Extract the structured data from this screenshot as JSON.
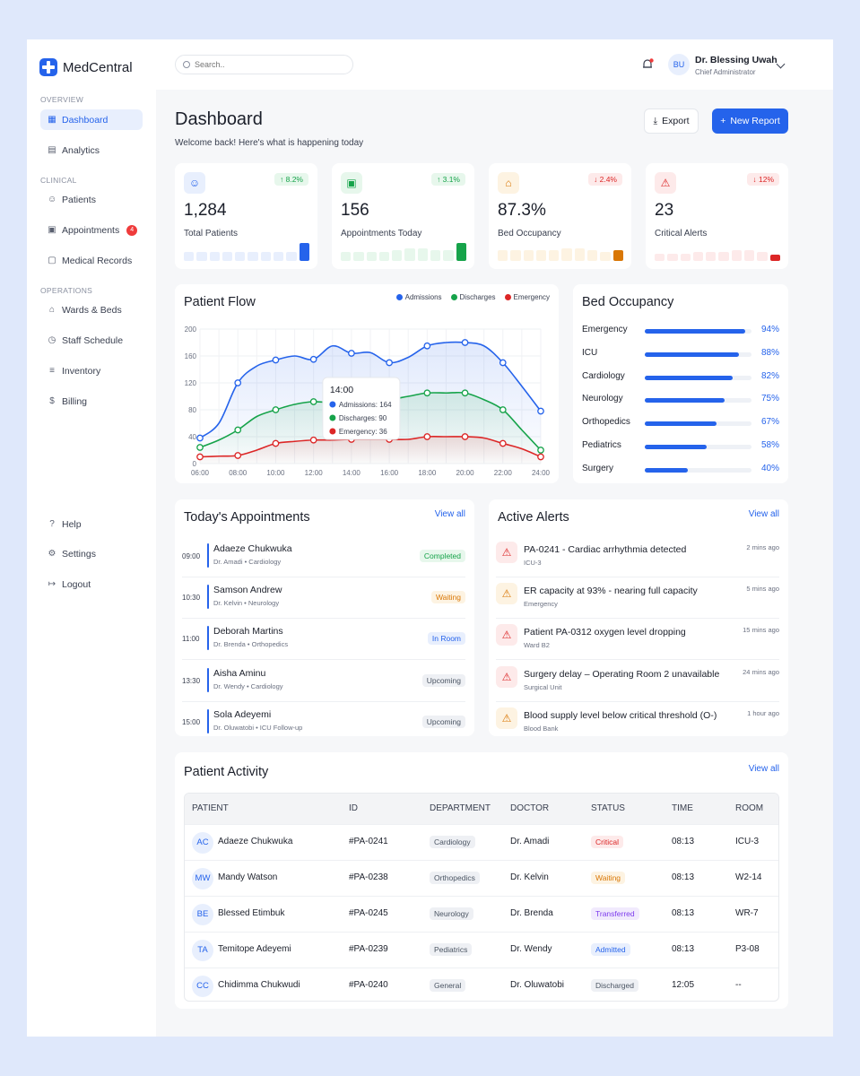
{
  "brand": {
    "name": "MedCentral"
  },
  "nav": {
    "sections": [
      {
        "label": "OVERVIEW",
        "items": [
          {
            "label": "Dashboard",
            "icon": "grid-icon",
            "active": true
          },
          {
            "label": "Analytics",
            "icon": "chart-icon"
          }
        ]
      },
      {
        "label": "CLINICAL",
        "items": [
          {
            "label": "Patients",
            "icon": "users-icon"
          },
          {
            "label": "Appointments",
            "icon": "calendar-icon",
            "badge": "4"
          },
          {
            "label": "Medical Records",
            "icon": "document-icon"
          }
        ]
      },
      {
        "label": "OPERATIONS",
        "items": [
          {
            "label": "Wards & Beds",
            "icon": "home-icon"
          },
          {
            "label": "Staff Schedule",
            "icon": "clock-icon"
          },
          {
            "label": "Inventory",
            "icon": "list-icon"
          },
          {
            "label": "Billing",
            "icon": "dollar-icon"
          }
        ]
      }
    ],
    "footer": [
      {
        "label": "Help",
        "icon": "help-icon"
      },
      {
        "label": "Settings",
        "icon": "gear-icon"
      },
      {
        "label": "Logout",
        "icon": "logout-icon"
      }
    ]
  },
  "topbar": {
    "search_placeholder": "Search..",
    "user": {
      "initials": "BU",
      "name": "Dr. Blessing Uwah",
      "role": "Chief Administrator"
    }
  },
  "header": {
    "title": "Dashboard",
    "subtitle": "Welcome back! Here's what is happening today",
    "export_label": "Export",
    "new_report_label": "New Report"
  },
  "stats": [
    {
      "value": "1,284",
      "label": "Total Patients",
      "change": "↑ 8.2%",
      "trend": "up",
      "accent": "#2563eb",
      "tint": "#e8effd",
      "icon": "users-icon",
      "bars": [
        0.5,
        0.5,
        0.5,
        0.5,
        0.5,
        0.5,
        0.5,
        0.5,
        0.5,
        1.0
      ]
    },
    {
      "value": "156",
      "label": "Appointments Today",
      "change": "↑ 3.1%",
      "trend": "up",
      "accent": "#16a34a",
      "tint": "#e7f7ec",
      "icon": "calendar-icon",
      "bars": [
        0.5,
        0.5,
        0.5,
        0.5,
        0.6,
        0.7,
        0.7,
        0.6,
        0.6,
        1.0
      ]
    },
    {
      "value": "87.3%",
      "label": "Bed Occupancy",
      "change": "↓ 2.4%",
      "trend": "down",
      "accent": "#d97706",
      "tint": "#fdf3e2",
      "icon": "home-icon",
      "bars": [
        0.6,
        0.6,
        0.6,
        0.6,
        0.6,
        0.7,
        0.7,
        0.6,
        0.5,
        0.6
      ]
    },
    {
      "value": "23",
      "label": "Critical Alerts",
      "change": "↓ 12%",
      "trend": "down",
      "accent": "#dc2626",
      "tint": "#fdeaea",
      "icon": "alert-icon",
      "bars": [
        0.4,
        0.4,
        0.4,
        0.5,
        0.5,
        0.5,
        0.6,
        0.6,
        0.5,
        0.35
      ]
    }
  ],
  "patient_flow": {
    "title": "Patient Flow",
    "legend": [
      {
        "name": "Admissions",
        "color": "#2563eb"
      },
      {
        "name": "Discharges",
        "color": "#16a34a"
      },
      {
        "name": "Emergency",
        "color": "#dc2626"
      }
    ],
    "tooltip": {
      "title": "14:00",
      "lines": [
        "Admissions: 164",
        "Discharges: 90",
        "Emergency: 36"
      ]
    }
  },
  "chart_data": {
    "type": "line",
    "x": [
      "06:00",
      "07:00",
      "08:00",
      "09:00",
      "10:00",
      "11:00",
      "12:00",
      "13:00",
      "14:00",
      "15:00",
      "16:00",
      "17:00",
      "18:00",
      "19:00",
      "20:00",
      "21:00",
      "22:00",
      "23:00",
      "24:00"
    ],
    "series": [
      {
        "name": "Admissions",
        "color": "#2563eb",
        "values": [
          38,
          60,
          120,
          145,
          154,
          160,
          155,
          175,
          164,
          165,
          150,
          158,
          175,
          180,
          180,
          175,
          150,
          115,
          78
        ]
      },
      {
        "name": "Discharges",
        "color": "#16a34a",
        "values": [
          24,
          35,
          50,
          70,
          80,
          88,
          92,
          90,
          90,
          92,
          95,
          100,
          105,
          105,
          105,
          95,
          80,
          50,
          20
        ]
      },
      {
        "name": "Emergency",
        "color": "#dc2626",
        "values": [
          10,
          11,
          12,
          20,
          30,
          33,
          35,
          35,
          36,
          36,
          36,
          36,
          40,
          40,
          40,
          38,
          30,
          22,
          10
        ]
      }
    ],
    "xticks": [
      "06:00",
      "08:00",
      "10:00",
      "12:00",
      "14:00",
      "16:00",
      "18:00",
      "20:00",
      "22:00",
      "24:00"
    ],
    "yticks": [
      "0",
      "40",
      "80",
      "120",
      "160",
      "200"
    ],
    "ylim": [
      0,
      200
    ],
    "grid": true,
    "legend_position": "top-right"
  },
  "bed_occupancy": {
    "title": "Bed Occupancy",
    "rows": [
      {
        "name": "Emergency",
        "pct": 94,
        "label": "94%"
      },
      {
        "name": "ICU",
        "pct": 88,
        "label": "88%"
      },
      {
        "name": "Cardiology",
        "pct": 82,
        "label": "82%"
      },
      {
        "name": "Neurology",
        "pct": 75,
        "label": "75%"
      },
      {
        "name": "Orthopedics",
        "pct": 67,
        "label": "67%"
      },
      {
        "name": "Pediatrics",
        "pct": 58,
        "label": "58%"
      },
      {
        "name": "Surgery",
        "pct": 40,
        "label": "40%"
      }
    ]
  },
  "appointments": {
    "title": "Today's Appointments",
    "view_all": "View all",
    "rows": [
      {
        "time": "09:00",
        "name": "Adaeze Chukwuka",
        "doctor": "Dr. Amadi • Cardiology",
        "status": "Completed",
        "color": "#16a34a",
        "tint": "#e7f7ec"
      },
      {
        "time": "10:30",
        "name": "Samson Andrew",
        "doctor": "Dr. Kelvin • Neurology",
        "status": "Waiting",
        "color": "#d97706",
        "tint": "#fdf3e2"
      },
      {
        "time": "11:00",
        "name": "Deborah Martins",
        "doctor": "Dr. Brenda • Orthopedics",
        "status": "In Room",
        "color": "#2563eb",
        "tint": "#e8effd"
      },
      {
        "time": "13:30",
        "name": "Aisha Aminu",
        "doctor": "Dr. Wendy • Cardiology",
        "status": "Upcoming",
        "color": "#4b5563",
        "tint": "#eef0f4"
      },
      {
        "time": "15:00",
        "name": "Sola Adeyemi",
        "doctor": "Dr. Oluwatobi • ICU Follow-up",
        "status": "Upcoming",
        "color": "#4b5563",
        "tint": "#eef0f4"
      }
    ]
  },
  "alerts": {
    "title": "Active Alerts",
    "view_all": "View all",
    "rows": [
      {
        "title": "PA-0241 - Cardiac arrhythmia detected",
        "sub": "ICU-3",
        "time": "2 mins ago",
        "color": "#dc2626",
        "tint": "#fdeaea"
      },
      {
        "title": "ER capacity at 93% - nearing full capacity",
        "sub": "Emergency",
        "time": "5 mins ago",
        "color": "#d97706",
        "tint": "#fdf3e2"
      },
      {
        "title": "Patient PA-0312 oxygen level dropping",
        "sub": "Ward B2",
        "time": "15 mins ago",
        "color": "#dc2626",
        "tint": "#fdeaea"
      },
      {
        "title": "Surgery delay – Operating Room 2 unavailable",
        "sub": "Surgical Unit",
        "time": "24 mins ago",
        "color": "#dc2626",
        "tint": "#fdeaea"
      },
      {
        "title": "Blood supply level below critical threshold (O-)",
        "sub": "Blood Bank",
        "time": "1 hour ago",
        "color": "#d97706",
        "tint": "#fdf3e2"
      }
    ]
  },
  "activity": {
    "title": "Patient Activity",
    "view_all": "View all",
    "columns": [
      "PATIENT",
      "ID",
      "DEPARTMENT",
      "DOCTOR",
      "STATUS",
      "TIME",
      "ROOM"
    ],
    "rows": [
      {
        "initials": "AC",
        "name": "Adaeze Chukwuka",
        "id": "#PA-0241",
        "dept": "Cardiology",
        "doctor": "Dr. Amadi",
        "status": "Critical",
        "status_color": "#dc2626",
        "status_tint": "#fdeaea",
        "time": "08:13",
        "room": "ICU-3"
      },
      {
        "initials": "MW",
        "name": "Mandy Watson",
        "id": "#PA-0238",
        "dept": "Orthopedics",
        "doctor": "Dr. Kelvin",
        "status": "Waiting",
        "status_color": "#d97706",
        "status_tint": "#fdf3e2",
        "time": "08:13",
        "room": "W2-14"
      },
      {
        "initials": "BE",
        "name": "Blessed Etimbuk",
        "id": "#PA-0245",
        "dept": "Neurology",
        "doctor": "Dr. Brenda",
        "status": "Transferred",
        "status_color": "#7c3aed",
        "status_tint": "#f1eafd",
        "time": "08:13",
        "room": "WR-7"
      },
      {
        "initials": "TA",
        "name": "Temitope Adeyemi",
        "id": "#PA-0239",
        "dept": "Pediatrics",
        "doctor": "Dr. Wendy",
        "status": "Admitted",
        "status_color": "#2563eb",
        "status_tint": "#e8effd",
        "time": "08:13",
        "room": "P3-08"
      },
      {
        "initials": "CC",
        "name": "Chidimma Chukwudi",
        "id": "#PA-0240",
        "dept": "General",
        "doctor": "Dr. Oluwatobi",
        "status": "Discharged",
        "status_color": "#4b5563",
        "status_tint": "#eef0f4",
        "time": "12:05",
        "room": "--"
      }
    ]
  }
}
